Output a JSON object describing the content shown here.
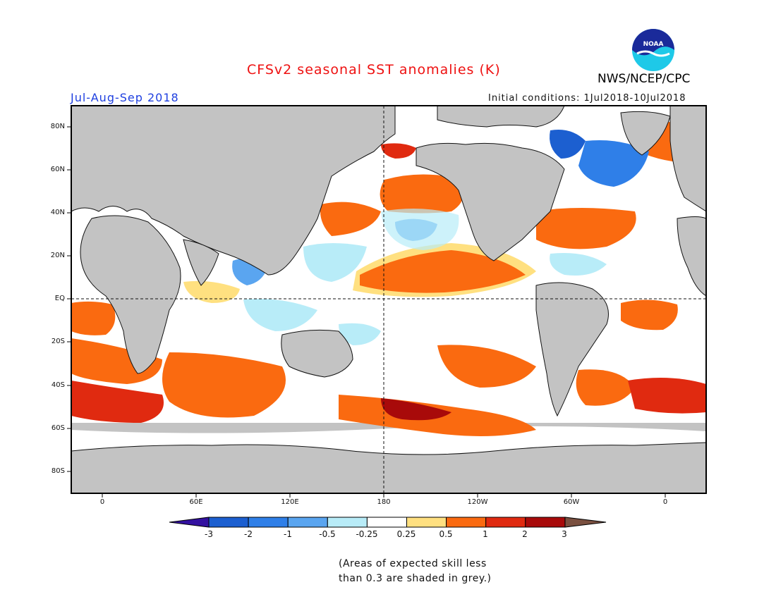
{
  "title": "CFSv2 seasonal SST anomalies (K)",
  "season": "Jul-Aug-Sep 2018",
  "initial_conditions": "Initial conditions: 1Jul2018-10Jul2018",
  "agency": "NWS/NCEP/CPC",
  "logo_text": "NOAA",
  "lat_labels": [
    "80N",
    "60N",
    "40N",
    "20N",
    "EQ",
    "20S",
    "40S",
    "60S",
    "80S"
  ],
  "lon_labels": [
    "0",
    "60E",
    "120E",
    "180",
    "120W",
    "60W",
    "0"
  ],
  "colorbar": {
    "labels": [
      "-3",
      "-2",
      "-1",
      "-0.5",
      "-0.25",
      "0.25",
      "0.5",
      "1",
      "2",
      "3"
    ],
    "colors": [
      "#3311a0",
      "#1c5fd0",
      "#2f7fe8",
      "#5aa5f0",
      "#b8ecf8",
      "#ffffff",
      "#ffe080",
      "#fa6a10",
      "#e02a10",
      "#a80a0a",
      "#7a5040"
    ]
  },
  "colors": {
    "land": "#c3c3c3",
    "title": "#ee1111",
    "season": "#1e3fe0"
  },
  "note": {
    "line1": "(Areas of expected skill less",
    "line2": "than 0.3 are shaded in grey.)"
  }
}
